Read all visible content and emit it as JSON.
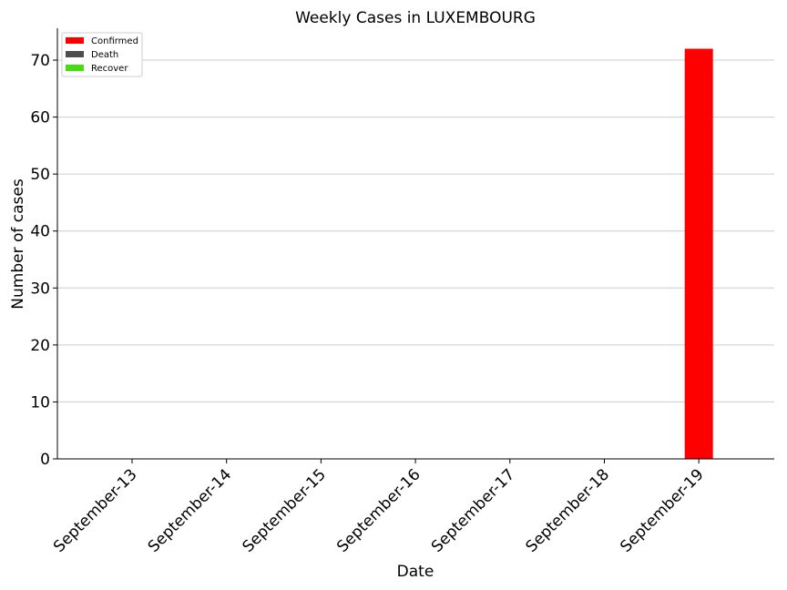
{
  "chart_data": {
    "type": "bar",
    "title": "Weekly Cases in LUXEMBOURG",
    "xlabel": "Date",
    "ylabel": "Number of cases",
    "categories": [
      "September-13",
      "September-14",
      "September-15",
      "September-16",
      "September-17",
      "September-18",
      "September-19"
    ],
    "series": [
      {
        "name": "Confirmed",
        "color": "#ff0000",
        "values": [
          0,
          0,
          0,
          0,
          0,
          0,
          72
        ]
      },
      {
        "name": "Death",
        "color": "#4d4d4d",
        "values": [
          0,
          0,
          0,
          0,
          0,
          0,
          0
        ]
      },
      {
        "name": "Recover",
        "color": "#44dd11",
        "values": [
          0,
          0,
          0,
          0,
          0,
          0,
          0
        ]
      }
    ],
    "ylim": [
      0,
      75.6
    ],
    "yticks": [
      0,
      10,
      20,
      30,
      40,
      50,
      60,
      70
    ],
    "grid": "horizontal",
    "legend": "top-left",
    "xtick_rotation": 45
  }
}
